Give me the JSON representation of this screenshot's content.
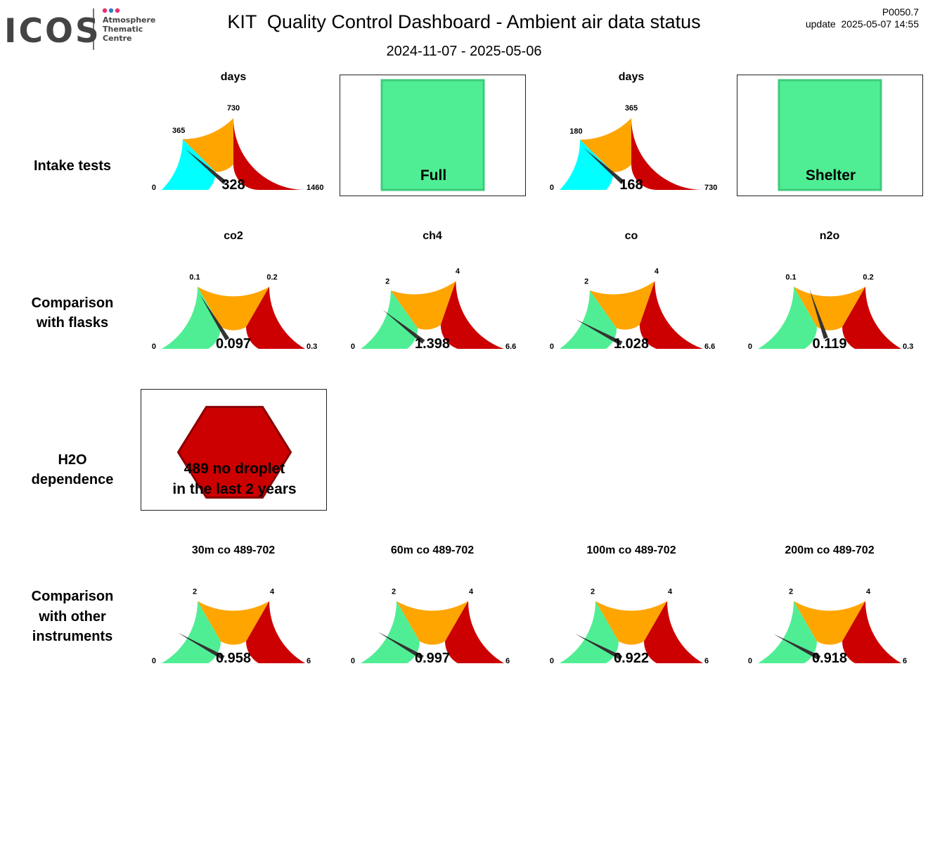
{
  "header": {
    "logo_text": "ICOS",
    "logo_sub": [
      "Atmosphere",
      "Thematic",
      "Centre"
    ],
    "logo_dot_colors": [
      "#e8306e",
      "#2f7fd0",
      "#e8306e"
    ],
    "title": "KIT  Quality Control Dashboard - Ambient air data status",
    "period": "2024-11-07 - 2025-05-06",
    "version": "P0050.7",
    "update": "update  2025-05-07 14:55"
  },
  "colors": {
    "cyan": "#00ffff",
    "green": "#50ee94",
    "orange": "#ffa500",
    "red": "#cc0000",
    "needle": "#333333",
    "status_box": "#50ee94",
    "status_box_edge": "#3ecb7c",
    "hexagon": "#cc0000",
    "hexagon_edge": "#8b0000"
  },
  "rows": [
    {
      "label": "Intake tests",
      "panels": [
        {
          "kind": "gauge",
          "title": "days",
          "min": 0,
          "max": 1460,
          "thresholds": [
            365,
            730
          ],
          "low_color": "cyan",
          "value": 328,
          "value_text": "328",
          "tick_labels": [
            "0",
            "365",
            "730",
            "1460"
          ]
        },
        {
          "kind": "status",
          "label": "Full",
          "shape": "square"
        },
        {
          "kind": "gauge",
          "title": "days",
          "min": 0,
          "max": 730,
          "thresholds": [
            180,
            365
          ],
          "low_color": "cyan",
          "value": 168,
          "value_text": "168",
          "tick_labels": [
            "0",
            "180",
            "365",
            "730"
          ]
        },
        {
          "kind": "status",
          "label": "Shelter",
          "shape": "square"
        }
      ]
    },
    {
      "label": "Comparison\nwith flasks",
      "panels": [
        {
          "kind": "gauge",
          "title": "co2",
          "min": 0,
          "max": 0.3,
          "thresholds": [
            0.1,
            0.2
          ],
          "low_color": "green",
          "value": 0.097,
          "value_text": "0.097",
          "tick_labels": [
            "0",
            "0.1",
            "0.2",
            "0.3"
          ]
        },
        {
          "kind": "gauge",
          "title": "ch4",
          "min": 0,
          "max": 6.6,
          "thresholds": [
            2,
            4
          ],
          "low_color": "green",
          "value": 1.398,
          "value_text": "1.398",
          "tick_labels": [
            "0",
            "2",
            "4",
            "6.6"
          ]
        },
        {
          "kind": "gauge",
          "title": "co",
          "min": 0,
          "max": 6.6,
          "thresholds": [
            2,
            4
          ],
          "low_color": "green",
          "value": 1.028,
          "value_text": "1.028",
          "tick_labels": [
            "0",
            "2",
            "4",
            "6.6"
          ]
        },
        {
          "kind": "gauge",
          "title": "n2o",
          "min": 0,
          "max": 0.3,
          "thresholds": [
            0.1,
            0.2
          ],
          "low_color": "green",
          "value": 0.119,
          "value_text": "0.119",
          "tick_labels": [
            "0",
            "0.1",
            "0.2",
            "0.3"
          ]
        }
      ]
    },
    {
      "label": "H2O\ndependence",
      "panels": [
        {
          "kind": "status",
          "shape": "hexagon",
          "label": "489 no droplet\nin the last 2 years"
        }
      ]
    },
    {
      "label": "Comparison\nwith other\ninstruments",
      "panels": [
        {
          "kind": "gauge",
          "title": "30m co 489-702",
          "min": 0,
          "max": 6,
          "thresholds": [
            2,
            4
          ],
          "low_color": "green",
          "value": 0.958,
          "value_text": "0.958",
          "tick_labels": [
            "0",
            "2",
            "4",
            "6"
          ]
        },
        {
          "kind": "gauge",
          "title": "60m co 489-702",
          "min": 0,
          "max": 6,
          "thresholds": [
            2,
            4
          ],
          "low_color": "green",
          "value": 0.997,
          "value_text": "0.997",
          "tick_labels": [
            "0",
            "2",
            "4",
            "6"
          ]
        },
        {
          "kind": "gauge",
          "title": "100m co 489-702",
          "min": 0,
          "max": 6,
          "thresholds": [
            2,
            4
          ],
          "low_color": "green",
          "value": 0.922,
          "value_text": "0.922",
          "tick_labels": [
            "0",
            "2",
            "4",
            "6"
          ]
        },
        {
          "kind": "gauge",
          "title": "200m co 489-702",
          "min": 0,
          "max": 6,
          "thresholds": [
            2,
            4
          ],
          "low_color": "green",
          "value": 0.918,
          "value_text": "0.918",
          "tick_labels": [
            "0",
            "2",
            "4",
            "6"
          ]
        }
      ]
    }
  ]
}
